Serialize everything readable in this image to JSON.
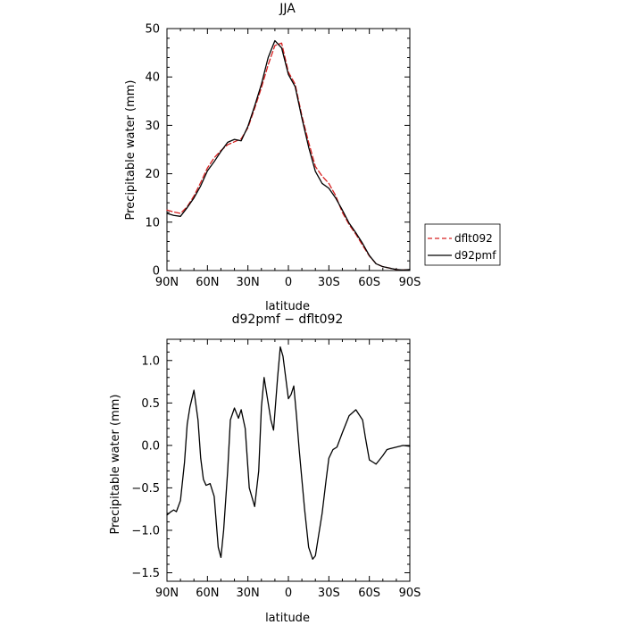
{
  "chart_data": [
    {
      "type": "line",
      "title": "JJA",
      "xlabel": "latitude",
      "ylabel": "Precipitable water (mm)",
      "xlim": [
        90,
        -90
      ],
      "ylim": [
        0,
        50
      ],
      "xticks": [
        90,
        60,
        30,
        0,
        -30,
        -60,
        -90
      ],
      "xtick_labels": [
        "90N",
        "60N",
        "30N",
        "0",
        "30S",
        "60S",
        "90S"
      ],
      "yticks": [
        0,
        10,
        20,
        30,
        40,
        50
      ],
      "ytick_labels": [
        "0",
        "10",
        "20",
        "30",
        "40",
        "50"
      ],
      "legend_position": "right",
      "series": [
        {
          "name": "dflt092",
          "color": "#d62020",
          "dash": "dashed",
          "x": [
            90,
            85,
            80,
            75,
            70,
            65,
            60,
            55,
            50,
            45,
            40,
            35,
            30,
            25,
            20,
            15,
            10,
            5,
            0,
            -5,
            -10,
            -15,
            -20,
            -25,
            -30,
            -35,
            -40,
            -45,
            -50,
            -55,
            -60,
            -65,
            -70,
            -75,
            -80,
            -85,
            -90
          ],
          "y": [
            12.5,
            12.1,
            11.8,
            13.2,
            15.4,
            18.2,
            21.2,
            23.3,
            24.8,
            26.0,
            26.6,
            27.2,
            29.5,
            33.5,
            37.8,
            42.5,
            46.5,
            47.0,
            41.0,
            38.5,
            32.0,
            26.5,
            21.5,
            19.5,
            18.0,
            15.5,
            12.0,
            9.5,
            7.5,
            5.2,
            3.0,
            1.4,
            0.8,
            0.5,
            0.2,
            0.1,
            0.2
          ]
        },
        {
          "name": "d92pmf",
          "color": "#000000",
          "dash": "solid",
          "x": [
            90,
            85,
            80,
            75,
            70,
            65,
            60,
            55,
            50,
            45,
            40,
            35,
            30,
            25,
            20,
            15,
            10,
            5,
            0,
            -5,
            -10,
            -15,
            -20,
            -25,
            -30,
            -35,
            -40,
            -45,
            -50,
            -55,
            -60,
            -65,
            -70,
            -75,
            -80,
            -85,
            -90
          ],
          "y": [
            11.8,
            11.4,
            11.2,
            13.0,
            15.0,
            17.5,
            20.6,
            22.5,
            24.6,
            26.5,
            27.1,
            26.8,
            29.8,
            34.0,
            38.5,
            44.0,
            47.5,
            46.0,
            40.5,
            38.0,
            31.5,
            25.5,
            20.5,
            18.0,
            17.0,
            15.0,
            12.5,
            9.8,
            7.8,
            5.6,
            3.1,
            1.4,
            0.8,
            0.5,
            0.2,
            0.1,
            0.2
          ]
        }
      ]
    },
    {
      "type": "line",
      "title": "d92pmf − dflt092",
      "xlabel": "latitude",
      "ylabel": "Precipitable water (mm)",
      "xlim": [
        90,
        -90
      ],
      "ylim": [
        -1.6,
        1.25
      ],
      "xticks": [
        90,
        60,
        30,
        0,
        -30,
        -60,
        -90
      ],
      "xtick_labels": [
        "90N",
        "60N",
        "30N",
        "0",
        "30S",
        "60S",
        "90S"
      ],
      "yticks": [
        1.0,
        0.5,
        0.0,
        -0.5,
        -1.0,
        -1.5
      ],
      "ytick_labels": [
        "1.0",
        "0.5",
        "0.0",
        "−0.5",
        "−1.0",
        "−1.5"
      ],
      "series": [
        {
          "color": "#000000",
          "dash": "solid",
          "x": [
            90,
            87,
            85,
            83,
            80,
            77,
            75,
            73,
            70,
            67,
            65,
            63,
            61,
            58,
            55,
            52,
            50,
            48,
            45,
            43,
            40,
            37,
            35,
            32,
            29,
            25,
            22,
            20,
            18,
            15,
            13,
            11,
            8,
            6,
            4,
            2,
            0,
            -2,
            -4,
            -6,
            -8,
            -10,
            -12,
            -15,
            -18,
            -20,
            -22,
            -25,
            -28,
            -30,
            -33,
            -36,
            -40,
            -45,
            -50,
            -55,
            -57,
            -60,
            -63,
            -65,
            -67,
            -70,
            -73,
            -75,
            -80,
            -85,
            -90
          ],
          "y": [
            -0.82,
            -0.78,
            -0.76,
            -0.78,
            -0.65,
            -0.2,
            0.25,
            0.45,
            0.65,
            0.3,
            -0.15,
            -0.4,
            -0.47,
            -0.45,
            -0.6,
            -1.2,
            -1.32,
            -1.0,
            -0.3,
            0.3,
            0.44,
            0.32,
            0.42,
            0.2,
            -0.5,
            -0.72,
            -0.3,
            0.45,
            0.8,
            0.5,
            0.3,
            0.18,
            0.8,
            1.16,
            1.05,
            0.8,
            0.55,
            0.6,
            0.7,
            0.35,
            -0.05,
            -0.4,
            -0.75,
            -1.2,
            -1.34,
            -1.3,
            -1.1,
            -0.8,
            -0.4,
            -0.15,
            -0.05,
            -0.02,
            0.15,
            0.35,
            0.42,
            0.3,
            0.1,
            -0.17,
            -0.2,
            -0.22,
            -0.18,
            -0.12,
            -0.05,
            -0.04,
            -0.02,
            0.0,
            -0.01
          ]
        }
      ]
    }
  ]
}
